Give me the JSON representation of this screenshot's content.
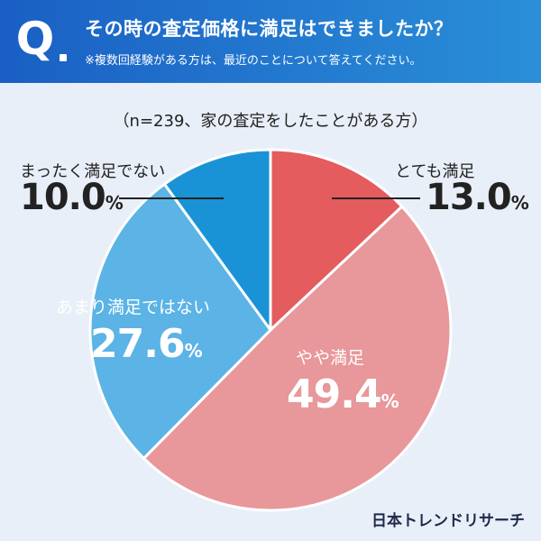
{
  "header": {
    "q_letter": "Q",
    "title": "その時の査定価格に満足はできましたか？",
    "note": "※複数回経験がある方は、最近のことについて答えてください。"
  },
  "sample_note": "（n=239、家の査定をしたことがある方）",
  "chart_data": {
    "type": "pie",
    "title": "その時の査定価格に満足はできましたか？",
    "subtitle": "（n=239、家の査定をしたことがある方）",
    "unit": "%",
    "start_angle_deg": 0,
    "direction": "clockwise",
    "slices": [
      {
        "label": "とても満足",
        "value": 13.0,
        "value_text": "13.0",
        "color": "#e45c5e"
      },
      {
        "label": "やや満足",
        "value": 49.4,
        "value_text": "49.4",
        "color": "#e8979a"
      },
      {
        "label": "あまり満足ではない",
        "value": 27.6,
        "value_text": "27.6",
        "color": "#5bb3e6"
      },
      {
        "label": "まったく満足でない",
        "value": 10.0,
        "value_text": "10.0",
        "color": "#1a93d6"
      }
    ]
  },
  "logo": "日本トレンドリサーチ"
}
